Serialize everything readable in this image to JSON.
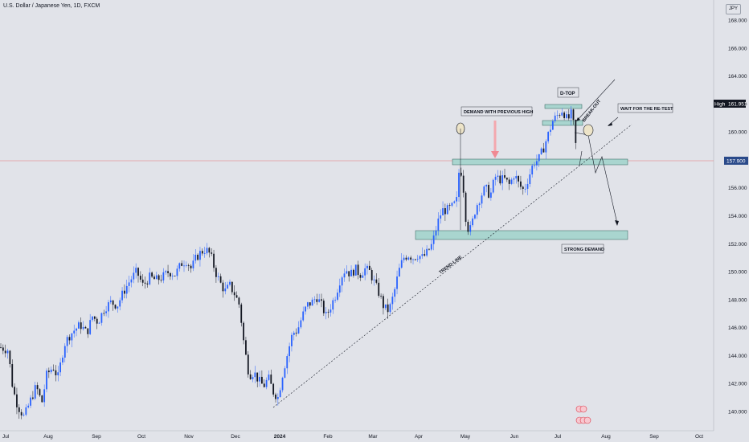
{
  "header": {
    "title": "U.S. Dollar / Japanese Yen, 1D, FXCM",
    "currency": "JPY"
  },
  "chart_data": {
    "type": "candlestick",
    "symbol": "U.S. Dollar / Japanese Yen",
    "interval": "1D",
    "source": "FXCM",
    "y_axis": {
      "ticks": [
        "168.000",
        "166.000",
        "164.000",
        "162.000",
        "160.000",
        "156.000",
        "154.000",
        "152.000",
        "150.000",
        "148.000",
        "146.000",
        "144.000",
        "142.000",
        "140.000"
      ],
      "range": [
        139.4,
        169.0
      ]
    },
    "x_axis": {
      "ticks": [
        "Jul",
        "Aug",
        "Sep",
        "Oct",
        "Nov",
        "Dec",
        "2024",
        "Feb",
        "Mar",
        "Apr",
        "May",
        "Jun",
        "Jul",
        "Aug",
        "Sep",
        "Oct"
      ]
    },
    "price_labels": [
      {
        "label": "High",
        "value": "161.951"
      },
      {
        "label": "",
        "value": "157.900"
      }
    ],
    "current_price": 157.9,
    "zones": [
      {
        "name": "D-TOP zone",
        "low": 161.7,
        "high": 162.0
      },
      {
        "name": "Second top zone",
        "low": 160.4,
        "high": 160.8
      },
      {
        "name": "Demand with previous high zone",
        "low": 157.7,
        "high": 158.1
      },
      {
        "name": "Strong demand zone",
        "low": 152.6,
        "high": 153.2
      }
    ],
    "annotations": [
      "D-TOP",
      "DEMAND WITH PREVIOUS HIGH",
      "BREAK-OUT",
      "WAIT FOR THE RE-TEST",
      "STRONG DEMAND",
      "TREND-LINE"
    ],
    "price_path": [
      {
        "x": 0,
        "y": 144.6
      },
      {
        "x": 10,
        "y": 144.4
      },
      {
        "x": 16,
        "y": 141.6
      },
      {
        "x": 22,
        "y": 140.4
      },
      {
        "x": 30,
        "y": 139.6
      },
      {
        "x": 38,
        "y": 140.8
      },
      {
        "x": 45,
        "y": 141.8
      },
      {
        "x": 52,
        "y": 140.6
      },
      {
        "x": 58,
        "y": 142.6
      },
      {
        "x": 66,
        "y": 143.2
      },
      {
        "x": 72,
        "y": 142.4
      },
      {
        "x": 80,
        "y": 144.8
      },
      {
        "x": 86,
        "y": 145.4
      },
      {
        "x": 92,
        "y": 145.8
      },
      {
        "x": 100,
        "y": 146.2
      },
      {
        "x": 108,
        "y": 145.6
      },
      {
        "x": 115,
        "y": 146.8
      },
      {
        "x": 122,
        "y": 146.4
      },
      {
        "x": 130,
        "y": 147.4
      },
      {
        "x": 138,
        "y": 147.8
      },
      {
        "x": 146,
        "y": 147.6
      },
      {
        "x": 154,
        "y": 148.6
      },
      {
        "x": 162,
        "y": 149.4
      },
      {
        "x": 170,
        "y": 150.0
      },
      {
        "x": 178,
        "y": 149.0
      },
      {
        "x": 186,
        "y": 149.6
      },
      {
        "x": 194,
        "y": 149.4
      },
      {
        "x": 202,
        "y": 149.6
      },
      {
        "x": 210,
        "y": 150.0
      },
      {
        "x": 218,
        "y": 149.8
      },
      {
        "x": 226,
        "y": 150.6
      },
      {
        "x": 232,
        "y": 150.8
      },
      {
        "x": 238,
        "y": 150.2
      },
      {
        "x": 244,
        "y": 151.0
      },
      {
        "x": 250,
        "y": 151.4
      },
      {
        "x": 256,
        "y": 151.6
      },
      {
        "x": 262,
        "y": 151.2
      },
      {
        "x": 268,
        "y": 150.0
      },
      {
        "x": 274,
        "y": 149.2
      },
      {
        "x": 280,
        "y": 148.6
      },
      {
        "x": 286,
        "y": 149.0
      },
      {
        "x": 292,
        "y": 148.4
      },
      {
        "x": 298,
        "y": 147.6
      },
      {
        "x": 304,
        "y": 144.6
      },
      {
        "x": 310,
        "y": 142.6
      },
      {
        "x": 316,
        "y": 142.8
      },
      {
        "x": 322,
        "y": 142.2
      },
      {
        "x": 328,
        "y": 141.8
      },
      {
        "x": 334,
        "y": 142.4
      },
      {
        "x": 340,
        "y": 141.4
      },
      {
        "x": 346,
        "y": 141.0
      },
      {
        "x": 352,
        "y": 142.8
      },
      {
        "x": 358,
        "y": 144.2
      },
      {
        "x": 364,
        "y": 145.6
      },
      {
        "x": 370,
        "y": 145.8
      },
      {
        "x": 376,
        "y": 146.8
      },
      {
        "x": 382,
        "y": 147.6
      },
      {
        "x": 388,
        "y": 147.8
      },
      {
        "x": 394,
        "y": 148.2
      },
      {
        "x": 400,
        "y": 147.6
      },
      {
        "x": 406,
        "y": 146.8
      },
      {
        "x": 412,
        "y": 147.6
      },
      {
        "x": 418,
        "y": 148.4
      },
      {
        "x": 424,
        "y": 149.6
      },
      {
        "x": 430,
        "y": 150.2
      },
      {
        "x": 436,
        "y": 149.8
      },
      {
        "x": 442,
        "y": 150.2
      },
      {
        "x": 448,
        "y": 149.8
      },
      {
        "x": 454,
        "y": 150.2
      },
      {
        "x": 460,
        "y": 150.0
      },
      {
        "x": 466,
        "y": 149.2
      },
      {
        "x": 472,
        "y": 148.4
      },
      {
        "x": 478,
        "y": 147.4
      },
      {
        "x": 484,
        "y": 147.2
      },
      {
        "x": 490,
        "y": 148.4
      },
      {
        "x": 496,
        "y": 150.0
      },
      {
        "x": 502,
        "y": 151.0
      },
      {
        "x": 508,
        "y": 151.2
      },
      {
        "x": 514,
        "y": 151.0
      },
      {
        "x": 520,
        "y": 151.2
      },
      {
        "x": 526,
        "y": 151.0
      },
      {
        "x": 532,
        "y": 151.4
      },
      {
        "x": 538,
        "y": 152.0
      },
      {
        "x": 544,
        "y": 153.4
      },
      {
        "x": 550,
        "y": 154.4
      },
      {
        "x": 556,
        "y": 154.4
      },
      {
        "x": 562,
        "y": 154.6
      },
      {
        "x": 568,
        "y": 155.0
      },
      {
        "x": 572,
        "y": 157.8
      },
      {
        "x": 576,
        "y": 156.4
      },
      {
        "x": 580,
        "y": 153.6
      },
      {
        "x": 584,
        "y": 152.8
      },
      {
        "x": 588,
        "y": 153.6
      },
      {
        "x": 592,
        "y": 154.6
      },
      {
        "x": 598,
        "y": 155.4
      },
      {
        "x": 604,
        "y": 156.0
      },
      {
        "x": 610,
        "y": 155.4
      },
      {
        "x": 616,
        "y": 156.8
      },
      {
        "x": 622,
        "y": 156.6
      },
      {
        "x": 628,
        "y": 156.6
      },
      {
        "x": 634,
        "y": 156.2
      },
      {
        "x": 640,
        "y": 157.0
      },
      {
        "x": 646,
        "y": 156.2
      },
      {
        "x": 652,
        "y": 155.8
      },
      {
        "x": 658,
        "y": 156.8
      },
      {
        "x": 664,
        "y": 157.8
      },
      {
        "x": 670,
        "y": 158.0
      },
      {
        "x": 676,
        "y": 158.8
      },
      {
        "x": 682,
        "y": 159.8
      },
      {
        "x": 688,
        "y": 160.8
      },
      {
        "x": 694,
        "y": 161.2
      },
      {
        "x": 700,
        "y": 161.6
      },
      {
        "x": 706,
        "y": 160.8
      },
      {
        "x": 712,
        "y": 161.4
      },
      {
        "x": 716,
        "y": 159.2
      },
      {
        "x": 720,
        "y": 157.9
      }
    ]
  }
}
